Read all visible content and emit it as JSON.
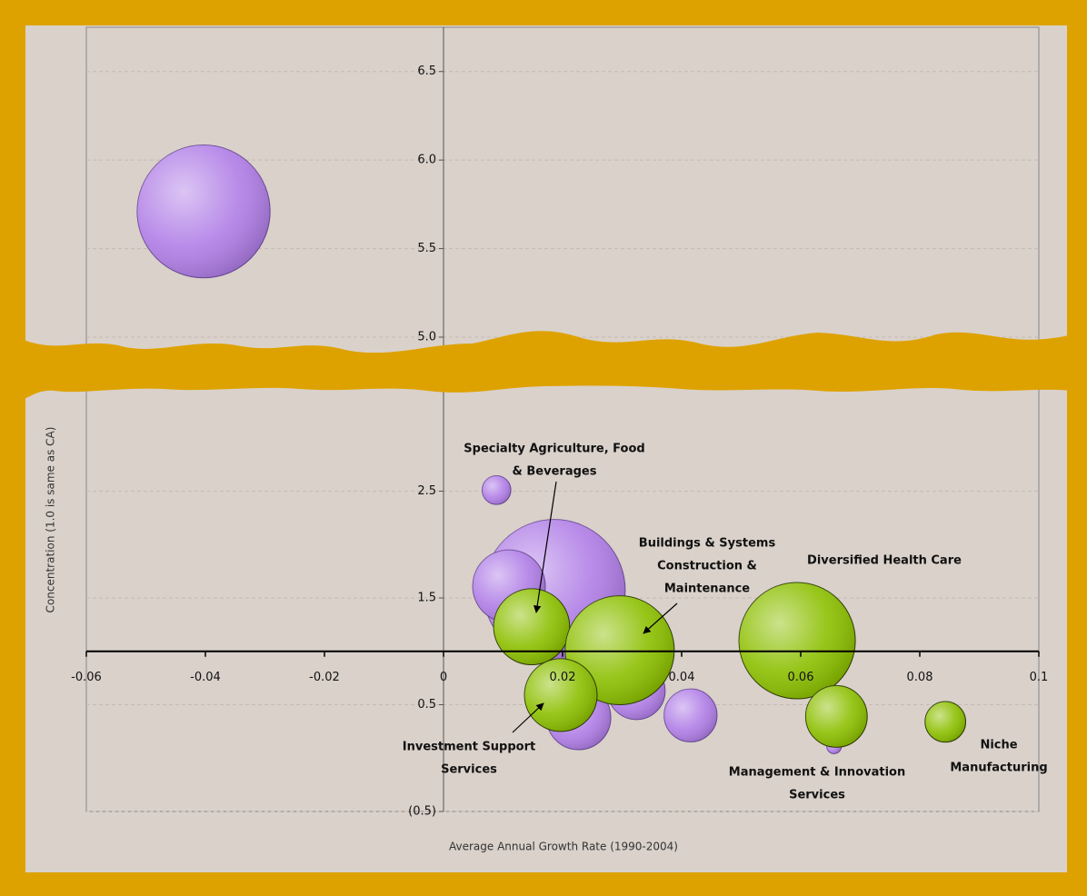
{
  "chart_data": {
    "type": "bubble",
    "x_label": "Average Annual Growth Rate (1990-2004)",
    "y_label": "Concentration (1.0 is same as CA)",
    "xlim": [
      -0.06,
      0.1
    ],
    "xticks": [
      -0.06,
      -0.04,
      -0.02,
      0,
      0.02,
      0.04,
      0.06,
      0.08,
      0.1
    ],
    "x_axis_crosses": 1,
    "grid": true,
    "panels": [
      {
        "ylim": [
          5,
          6.75
        ],
        "yticks": [
          {
            "value": 5,
            "label": "5.0"
          },
          {
            "value": 5.5,
            "label": "5.5"
          },
          {
            "value": 6,
            "label": "6.0"
          },
          {
            "value": 6.5,
            "label": "6.5"
          }
        ]
      },
      {
        "ylim": [
          -0.5,
          3.75
        ],
        "yticks": [
          {
            "value": -0.5,
            "label": "(0.5)"
          },
          0.5,
          1.5,
          2.5,
          3.5
        ]
      }
    ],
    "series": [
      {
        "color": "#b07ee6",
        "x": [
          -0.0403,
          0.0089,
          0.0186,
          0.011,
          0.0227,
          0.0324,
          0.0415,
          0.0656
        ],
        "y": [
          5.71,
          2.51,
          1.57,
          1.61,
          0.38,
          0.63,
          0.4,
          0.11
        ],
        "sizes": [
          107,
          5,
          122,
          32,
          25,
          20,
          17,
          1.3
        ]
      },
      {
        "color": "#8cbf00",
        "x": [
          0.0148,
          0.0296,
          0.0594,
          0.0197,
          0.066,
          0.0843
        ],
        "y": [
          1.23,
          1.01,
          1.1,
          0.59,
          0.39,
          0.34
        ],
        "sizes": [
          35,
          72,
          82,
          32,
          23,
          10
        ]
      }
    ],
    "annotations": [
      {
        "lines": [
          "Specialty Agriculture, Food",
          "& Beverages"
        ]
      },
      {
        "lines": [
          "Buildings & Systems",
          "Construction &",
          "Maintenance"
        ]
      },
      {
        "lines": [
          "Diversified Health Care"
        ]
      },
      {
        "lines": [
          "Investment Support",
          "Services"
        ]
      },
      {
        "lines": [
          "Management & Innovation",
          "Services"
        ]
      },
      {
        "lines": [
          "Niche",
          "Manufacturing"
        ]
      }
    ]
  }
}
